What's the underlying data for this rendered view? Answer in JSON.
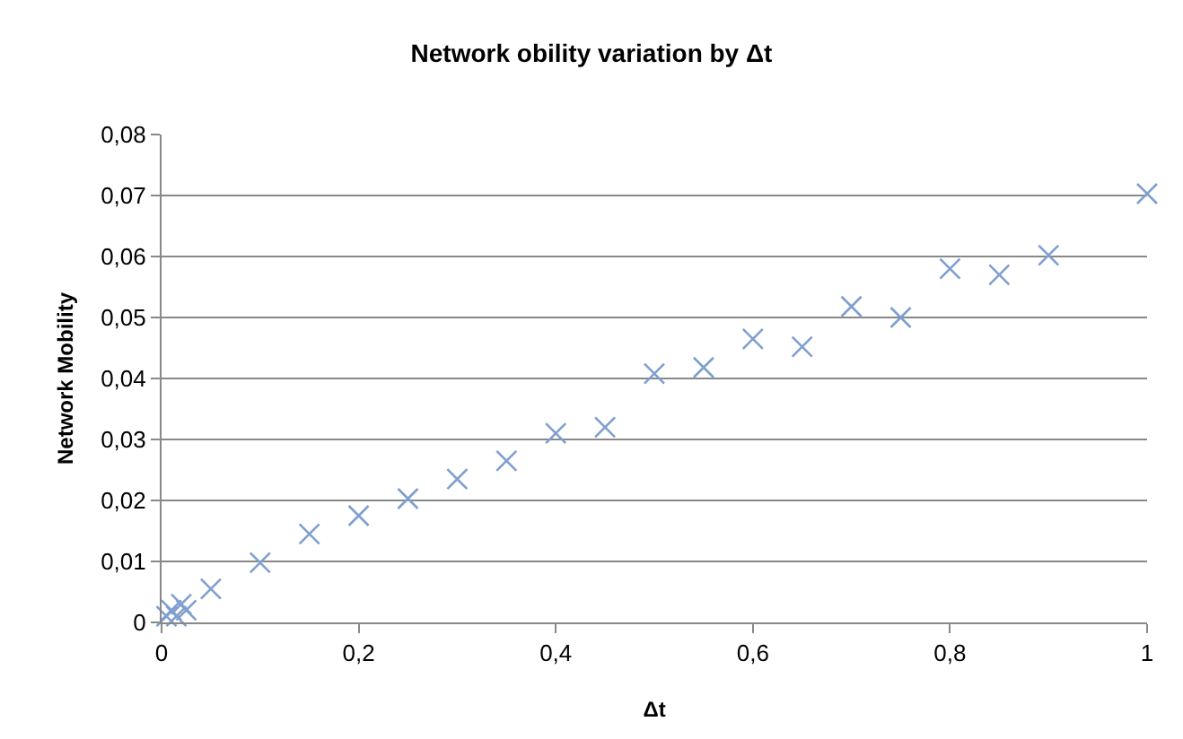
{
  "chart_data": {
    "type": "scatter",
    "title": "Network obility variation by Δt",
    "xlabel": "Δt",
    "ylabel": "Network Mobility",
    "x": [
      0.005,
      0.01,
      0.015,
      0.02,
      0.025,
      0.05,
      0.1,
      0.15,
      0.2,
      0.25,
      0.3,
      0.35,
      0.4,
      0.45,
      0.5,
      0.55,
      0.6,
      0.65,
      0.7,
      0.75,
      0.8,
      0.85,
      0.9,
      1.0
    ],
    "series": [
      {
        "color": "#7f9fcf",
        "values": [
          0.001,
          0.002,
          0.001,
          0.003,
          0.002,
          0.0055,
          0.0098,
          0.0145,
          0.0175,
          0.0203,
          0.0235,
          0.0265,
          0.031,
          0.032,
          0.0408,
          0.0418,
          0.0465,
          0.0452,
          0.0518,
          0.05,
          0.058,
          0.057,
          0.0602,
          0.0703
        ]
      }
    ],
    "xlim": [
      0,
      1
    ],
    "xticks": [
      0,
      {
        "value": 0.2,
        "label": "0,2"
      },
      {
        "value": 0.4,
        "label": "0,4"
      },
      {
        "value": 0.6,
        "label": "0,6"
      },
      {
        "value": 0.8,
        "label": "0,8"
      },
      1
    ],
    "ylim": [
      0,
      0.08
    ],
    "yticks": [
      0,
      {
        "value": 0.01,
        "label": "0,01"
      },
      {
        "value": 0.02,
        "label": "0,02"
      },
      {
        "value": 0.03,
        "label": "0,03"
      },
      {
        "value": 0.04,
        "label": "0,04"
      },
      {
        "value": 0.05,
        "label": "0,05"
      },
      {
        "value": 0.06,
        "label": "0,06"
      },
      {
        "value": 0.07,
        "label": "0,07"
      },
      {
        "value": 0.08,
        "label": "0,08"
      }
    ],
    "grid": "y",
    "marker": "cross",
    "legend": false
  }
}
